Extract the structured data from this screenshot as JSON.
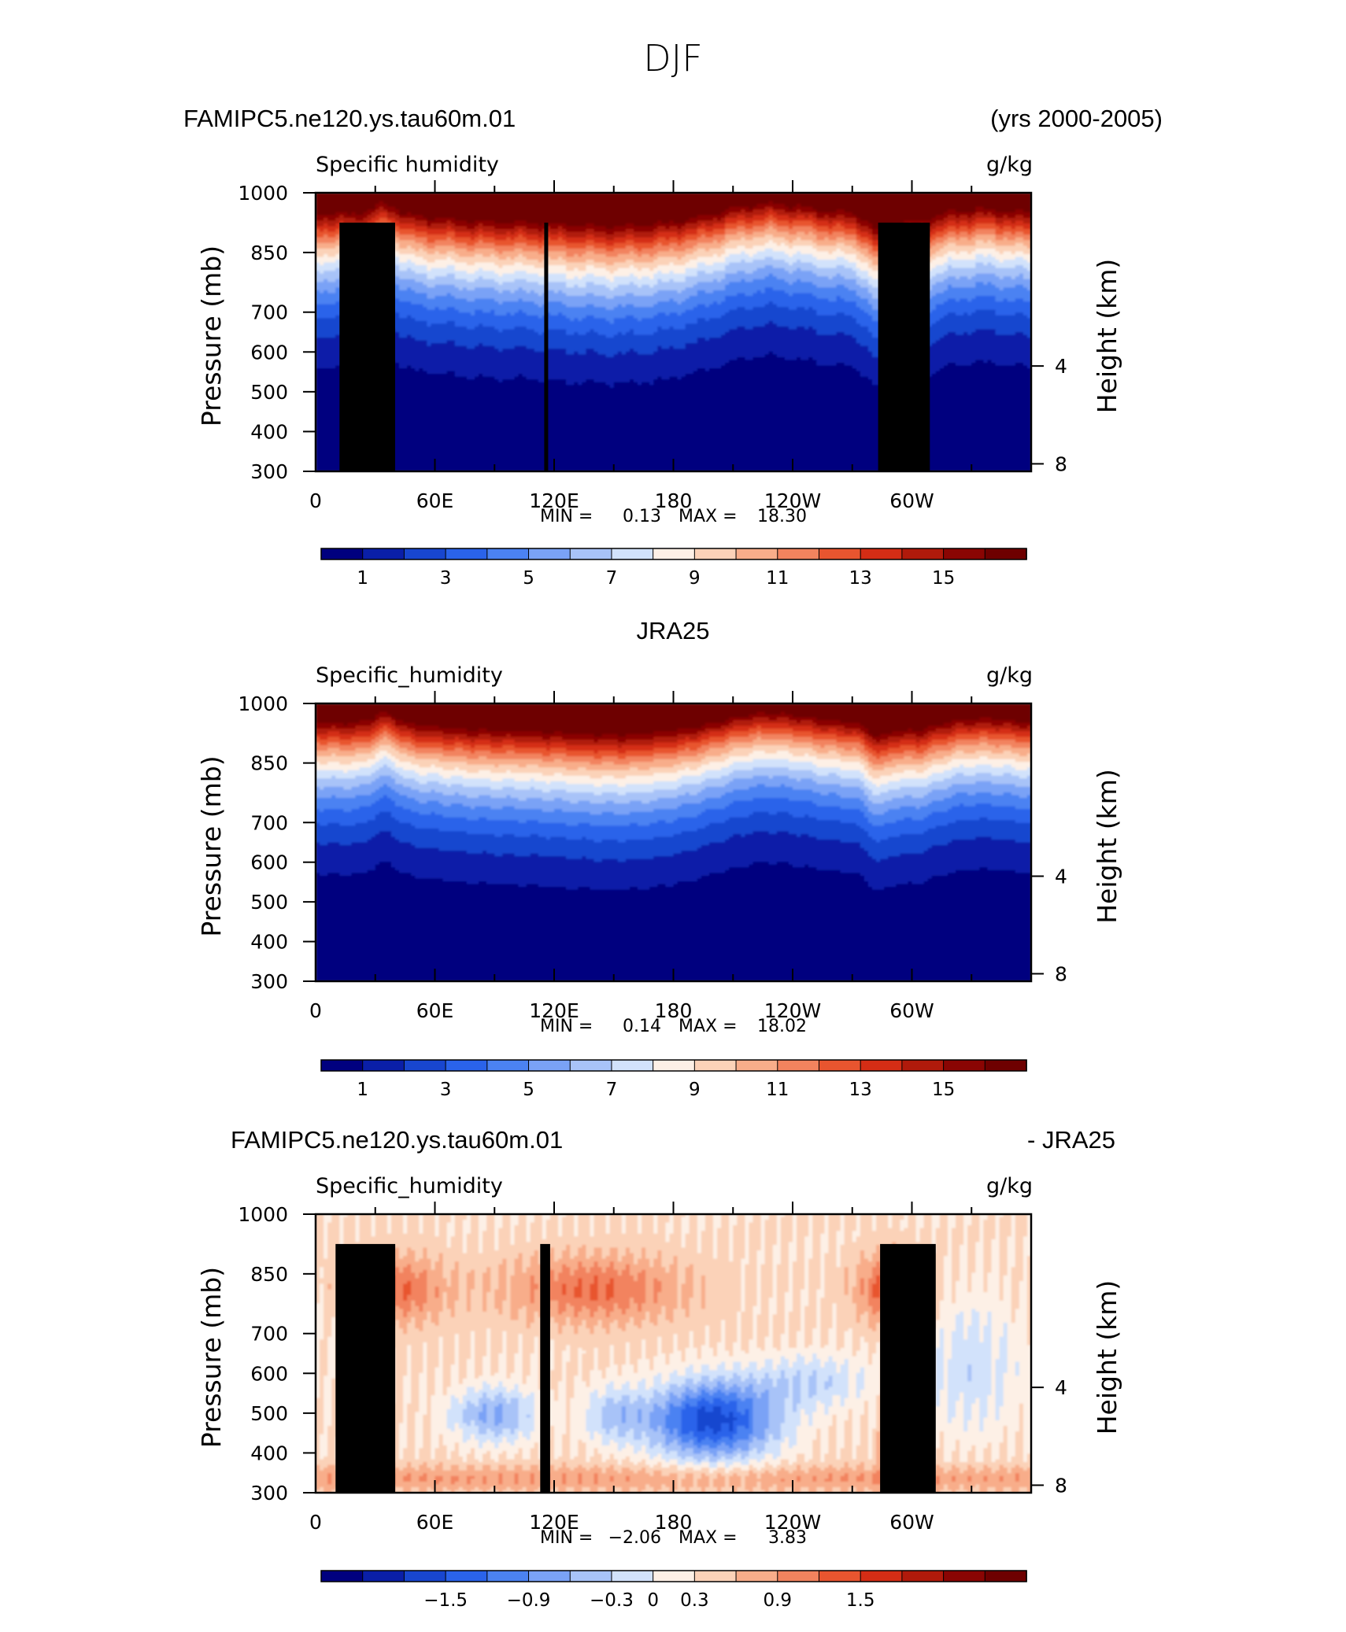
{
  "figure_title": "DJF",
  "colors": {
    "full_field": [
      "#00007f",
      "#0a1fa8",
      "#1846cf",
      "#2a63ea",
      "#4b82f2",
      "#7aa2f6",
      "#a8c3f8",
      "#d2e2fb",
      "#fdf0e6",
      "#fbd2b8",
      "#f8ad8a",
      "#f2835e",
      "#e8552f",
      "#d42d15",
      "#b01a0b",
      "#8a0503",
      "#6e0000"
    ],
    "difference": [
      "#00007f",
      "#0a1fa8",
      "#1846cf",
      "#2a63ea",
      "#4b82f2",
      "#7aa2f6",
      "#a8c3f8",
      "#d2e2fb",
      "#fdf0e6",
      "#fbd2b8",
      "#f8ad8a",
      "#f2835e",
      "#e8552f",
      "#d42d15",
      "#b01a0b",
      "#8a0503",
      "#6e0000"
    ],
    "topography": "#000000"
  },
  "chart_data": [
    {
      "type": "heatmap",
      "panel_title_left": "FAMIPC5.ne120.ys.tau60m.01",
      "panel_title_right": "(yrs 2000-2005)",
      "variable_left": "Specific  humidity",
      "units_right": "g/kg",
      "ylabel": "Pressure  (mb)",
      "ylabel_right": "Height  (km)",
      "y_ticks": [
        "300",
        "400",
        "500",
        "600",
        "700",
        "850",
        "1000"
      ],
      "y_tick_values": [
        300,
        400,
        500,
        600,
        700,
        850,
        1000
      ],
      "y_right_ticks": [
        "8",
        "4"
      ],
      "y_right_tick_values": [
        8,
        4
      ],
      "ylim": [
        1000,
        300
      ],
      "x_ticks": [
        "0",
        "60E",
        "120E",
        "180",
        "120W",
        "60W"
      ],
      "x_tick_values": [
        0,
        60,
        120,
        180,
        240,
        300
      ],
      "xlim": [
        0,
        360
      ],
      "min_label": "MIN =",
      "min_value": "0.13",
      "max_label": "MAX =",
      "max_value": "18.30",
      "colorbar_labels": [
        "1",
        "3",
        "5",
        "7",
        "9",
        "11",
        "13",
        "15"
      ],
      "colorbar_label_values": [
        1,
        3,
        5,
        7,
        9,
        11,
        13,
        15
      ],
      "contour_levels": [
        0,
        1,
        2,
        3,
        4,
        5,
        6,
        7,
        8,
        9,
        10,
        11,
        12,
        13,
        14,
        15,
        16
      ],
      "topography": [
        {
          "lon_from": 12,
          "lon_to": 40,
          "pressure_top": 925
        },
        {
          "lon_from": 28,
          "lon_to": 35,
          "pressure_top": 850
        },
        {
          "lon_from": 115,
          "lon_to": 117,
          "pressure_top": 925
        },
        {
          "lon_from": 283,
          "lon_to": 309,
          "pressure_top": 925
        }
      ]
    },
    {
      "type": "heatmap",
      "panel_title_center": "JRA25",
      "variable_left": "Specific_humidity",
      "units_right": "g/kg",
      "ylabel": "Pressure  (mb)",
      "ylabel_right": "Height  (km)",
      "y_ticks": [
        "300",
        "400",
        "500",
        "600",
        "700",
        "850",
        "1000"
      ],
      "y_tick_values": [
        300,
        400,
        500,
        600,
        700,
        850,
        1000
      ],
      "y_right_ticks": [
        "8",
        "4"
      ],
      "y_right_tick_values": [
        8,
        4
      ],
      "ylim": [
        1000,
        300
      ],
      "x_ticks": [
        "0",
        "60E",
        "120E",
        "180",
        "120W",
        "60W"
      ],
      "x_tick_values": [
        0,
        60,
        120,
        180,
        240,
        300
      ],
      "xlim": [
        0,
        360
      ],
      "min_label": "MIN =",
      "min_value": "0.14",
      "max_label": "MAX =",
      "max_value": "18.02",
      "colorbar_labels": [
        "1",
        "3",
        "5",
        "7",
        "9",
        "11",
        "13",
        "15"
      ],
      "colorbar_label_values": [
        1,
        3,
        5,
        7,
        9,
        11,
        13,
        15
      ],
      "contour_levels": [
        0,
        1,
        2,
        3,
        4,
        5,
        6,
        7,
        8,
        9,
        10,
        11,
        12,
        13,
        14,
        15,
        16
      ],
      "topography": []
    },
    {
      "type": "heatmap",
      "panel_title_left": "FAMIPC5.ne120.ys.tau60m.01",
      "panel_title_right": "- JRA25",
      "variable_left": "Specific_humidity",
      "units_right": "g/kg",
      "ylabel": "Pressure  (mb)",
      "ylabel_right": "Height  (km)",
      "y_ticks": [
        "300",
        "400",
        "500",
        "600",
        "700",
        "850",
        "1000"
      ],
      "y_tick_values": [
        300,
        400,
        500,
        600,
        700,
        850,
        1000
      ],
      "y_right_ticks": [
        "8",
        "4"
      ],
      "y_right_tick_values": [
        8,
        4
      ],
      "ylim": [
        1000,
        300
      ],
      "x_ticks": [
        "0",
        "60E",
        "120E",
        "180",
        "120W",
        "60W"
      ],
      "x_tick_values": [
        0,
        60,
        120,
        180,
        240,
        300
      ],
      "xlim": [
        0,
        360
      ],
      "min_label": "MIN =",
      "min_value": "−2.06",
      "max_label": "MAX =",
      "max_value": "3.83",
      "colorbar_labels": [
        "−1.5",
        "−0.9",
        "−0.3",
        "0",
        "0.3",
        "0.9",
        "1.5"
      ],
      "colorbar_label_values": [
        -1.5,
        -0.9,
        -0.3,
        0,
        0.3,
        0.9,
        1.5
      ],
      "contour_levels": [
        -2.4,
        -2.1,
        -1.8,
        -1.5,
        -1.2,
        -0.9,
        -0.6,
        -0.3,
        0,
        0.3,
        0.6,
        0.9,
        1.2,
        1.5,
        1.8,
        2.1,
        2.4
      ],
      "topography": [
        {
          "lon_from": 10,
          "lon_to": 40,
          "pressure_top": 925
        },
        {
          "lon_from": 28,
          "lon_to": 35,
          "pressure_top": 850
        },
        {
          "lon_from": 113,
          "lon_to": 118,
          "pressure_top": 925
        },
        {
          "lon_from": 284,
          "lon_to": 312,
          "pressure_top": 925
        }
      ]
    }
  ]
}
